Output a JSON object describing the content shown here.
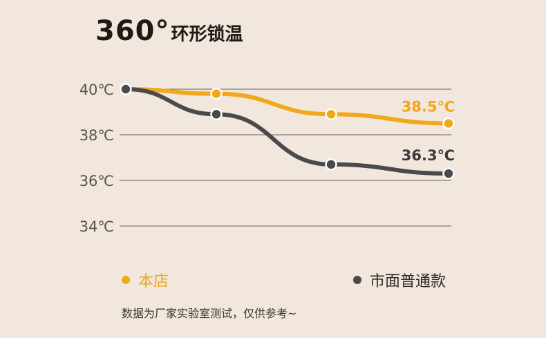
{
  "title": {
    "big": "360°",
    "small": "环形锁温"
  },
  "colors": {
    "orange": "#f2a81a",
    "gray": "#4a4a4c",
    "grid": "#6e6258",
    "tick": "#5a524b",
    "background": "#f1e7dc"
  },
  "chart_data": {
    "type": "line",
    "title": "360°环形锁温",
    "xlabel": "",
    "ylabel": "",
    "x": [
      0,
      1,
      2,
      3
    ],
    "ylim": [
      34,
      40
    ],
    "yticks": [
      40,
      38,
      36,
      34
    ],
    "ytick_labels": [
      "40℃",
      "38℃",
      "36℃",
      "34℃"
    ],
    "grid": true,
    "legend_position": "bottom",
    "series": [
      {
        "name": "本店",
        "color": "#f2a81a",
        "values": [
          40.0,
          39.8,
          38.9,
          38.5
        ],
        "end_label": "38.5℃"
      },
      {
        "name": "市面普通款",
        "color": "#4a4a4c",
        "values": [
          40.0,
          38.9,
          36.7,
          36.3
        ],
        "end_label": "36.3℃"
      }
    ]
  },
  "legend": [
    {
      "label": "本店",
      "color": "#f2a81a"
    },
    {
      "label": "市面普通款",
      "color": "#4a4a4c"
    }
  ],
  "note": "数据为厂家实验室测试，仅供参考~"
}
